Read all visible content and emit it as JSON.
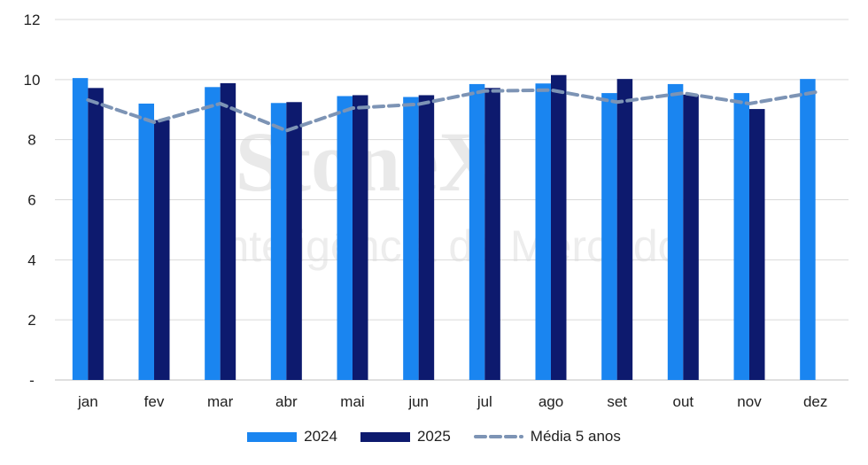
{
  "watermark": {
    "brand": "StoneX",
    "tagline": "Inteligência de Mercado"
  },
  "chart_data": {
    "type": "bar",
    "categories": [
      "jan",
      "fev",
      "mar",
      "abr",
      "mai",
      "jun",
      "jul",
      "ago",
      "set",
      "out",
      "nov",
      "dez"
    ],
    "series": [
      {
        "name": "2024",
        "type": "bar",
        "color": "#1a85f0",
        "values": [
          10.05,
          9.2,
          9.75,
          9.22,
          9.45,
          9.42,
          9.85,
          9.87,
          9.55,
          9.85,
          9.55,
          10.02
        ]
      },
      {
        "name": "2025",
        "type": "bar",
        "color": "#0d1a6e",
        "values": [
          9.72,
          8.65,
          9.88,
          9.25,
          9.48,
          9.48,
          9.72,
          10.15,
          10.02,
          9.5,
          9.02,
          null
        ]
      },
      {
        "name": "Média 5 anos",
        "type": "line",
        "style": "dashed",
        "color": "#7d94b5",
        "values": [
          9.32,
          8.58,
          9.2,
          8.3,
          9.05,
          9.18,
          9.62,
          9.65,
          9.25,
          9.55,
          9.2,
          9.58
        ]
      }
    ],
    "y_ticks": [
      "-",
      "2",
      "4",
      "6",
      "8",
      "10",
      "12"
    ],
    "ylim": [
      0,
      12
    ],
    "grid": true,
    "legend_position": "bottom"
  }
}
